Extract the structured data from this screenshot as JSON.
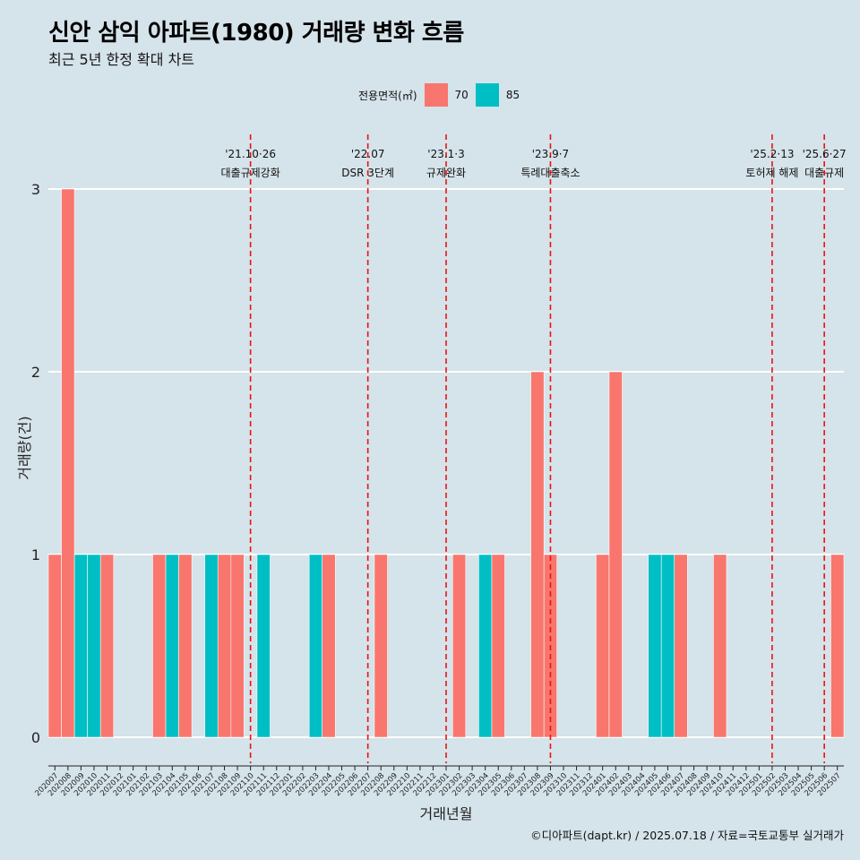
{
  "title": "신안 삼익 아파트(1980) 거래량 변화 흐름",
  "subtitle": "최근 5년 한정 확대 차트",
  "legend": {
    "title": "전용면적(㎡)",
    "items": [
      {
        "label": "70",
        "color": "#F8766D"
      },
      {
        "label": "85",
        "color": "#00BFC4"
      }
    ]
  },
  "caption": "©디아파트(dapt.kr) / 2025.07.18 / 자료=국토교통부 실거래가",
  "chart_data": {
    "type": "bar",
    "xlabel": "거래년월",
    "ylabel": "거래량(건)",
    "ylim": [
      0,
      3
    ],
    "y_ticks": [
      0,
      1,
      2,
      3
    ],
    "categories": [
      "202007",
      "202008",
      "202009",
      "202010",
      "202011",
      "202012",
      "202101",
      "202102",
      "202103",
      "202104",
      "202105",
      "202106",
      "202107",
      "202108",
      "202109",
      "202110",
      "202111",
      "202112",
      "202201",
      "202202",
      "202203",
      "202204",
      "202205",
      "202206",
      "202207",
      "202208",
      "202209",
      "202210",
      "202211",
      "202212",
      "202301",
      "202302",
      "202303",
      "202304",
      "202305",
      "202306",
      "202307",
      "202308",
      "202309",
      "202310",
      "202311",
      "202312",
      "202401",
      "202402",
      "202403",
      "202404",
      "202405",
      "202406",
      "202407",
      "202408",
      "202409",
      "202410",
      "202411",
      "202412",
      "202501",
      "202502",
      "202503",
      "202504",
      "202505",
      "202506",
      "202507"
    ],
    "series": [
      {
        "name": "70",
        "color": "#F8766D",
        "values": [
          1,
          3,
          0,
          0,
          1,
          0,
          0,
          0,
          1,
          0,
          1,
          0,
          0,
          1,
          1,
          0,
          0,
          0,
          0,
          0,
          0,
          1,
          0,
          0,
          0,
          1,
          0,
          0,
          0,
          0,
          0,
          1,
          0,
          0,
          1,
          0,
          0,
          2,
          1,
          0,
          0,
          0,
          1,
          2,
          0,
          0,
          0,
          0,
          1,
          0,
          0,
          1,
          0,
          0,
          0,
          0,
          0,
          0,
          0,
          0,
          1
        ]
      },
      {
        "name": "85",
        "color": "#00BFC4",
        "values": [
          0,
          0,
          1,
          1,
          0,
          0,
          0,
          0,
          0,
          1,
          0,
          0,
          1,
          0,
          0,
          0,
          1,
          0,
          0,
          0,
          1,
          0,
          0,
          0,
          0,
          0,
          0,
          0,
          0,
          0,
          0,
          0,
          0,
          1,
          0,
          0,
          0,
          0,
          0,
          0,
          0,
          0,
          0,
          0,
          0,
          0,
          1,
          1,
          0,
          0,
          0,
          0,
          0,
          0,
          0,
          0,
          0,
          0,
          0,
          0,
          0
        ]
      }
    ],
    "annotations": [
      {
        "at": "202110",
        "date": "'21.10·26",
        "label": "대출규제강화"
      },
      {
        "at": "202207",
        "date": "'22.07",
        "label": "DSR 3단계"
      },
      {
        "at": "202301",
        "date": "'23.1·3",
        "label": "규제완화"
      },
      {
        "at": "202309",
        "date": "'23.9·7",
        "label": "특례대출축소"
      },
      {
        "at": "202502",
        "date": "'25.2·13",
        "label": "토허제 해제"
      },
      {
        "at": "202506",
        "date": "'25.6·27",
        "label": "대출규제"
      }
    ],
    "grid": true,
    "legend_position": "top"
  }
}
